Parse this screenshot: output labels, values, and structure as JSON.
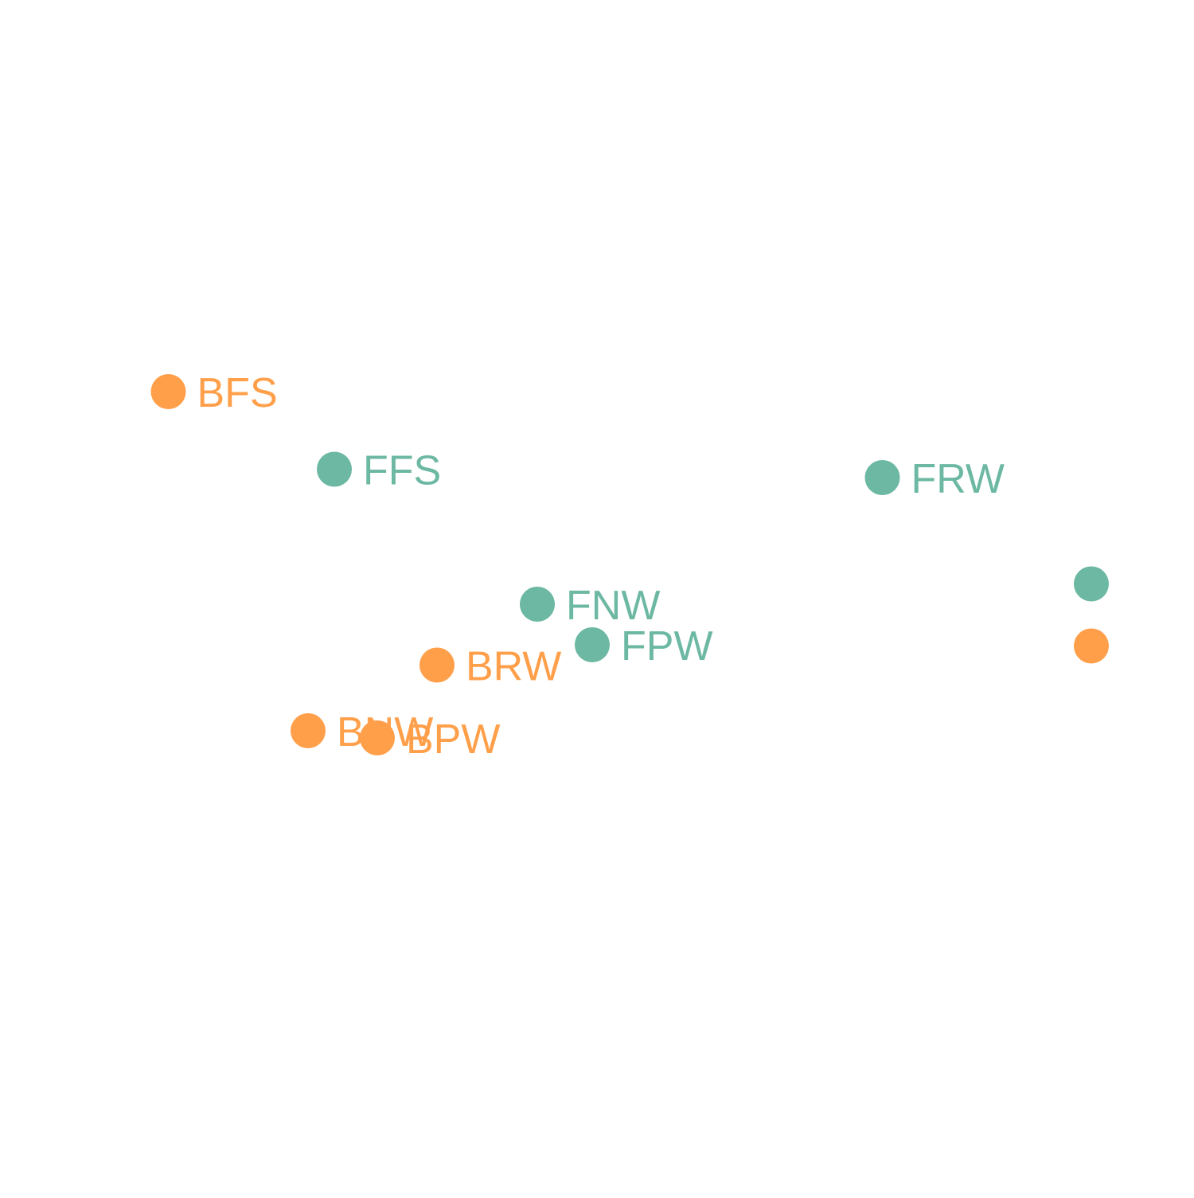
{
  "chart_data": {
    "type": "scatter",
    "title": "",
    "xlabel": "",
    "ylabel": "",
    "grid": false,
    "axes_visible": false,
    "xlim": [
      0,
      100
    ],
    "ylim": [
      0,
      100
    ],
    "series": [
      {
        "color": "#FF9F4A",
        "points": [
          {
            "label": "BFS",
            "x": 14.1,
            "y": 67.2
          },
          {
            "label": "BRW",
            "x": 36.6,
            "y": 44.3
          },
          {
            "label": "BNW",
            "x": 25.8,
            "y": 38.8
          },
          {
            "label": "BPW",
            "x": 31.6,
            "y": 38.2
          },
          {
            "label": "",
            "x": 91.4,
            "y": 45.9
          }
        ]
      },
      {
        "color": "#6CB8A3",
        "points": [
          {
            "label": "FFS",
            "x": 28.0,
            "y": 60.7
          },
          {
            "label": "FRW",
            "x": 73.9,
            "y": 60.0
          },
          {
            "label": "FNW",
            "x": 45.0,
            "y": 49.4
          },
          {
            "label": "FPW",
            "x": 49.6,
            "y": 46.0
          },
          {
            "label": "",
            "x": 91.4,
            "y": 51.1
          }
        ]
      }
    ]
  }
}
